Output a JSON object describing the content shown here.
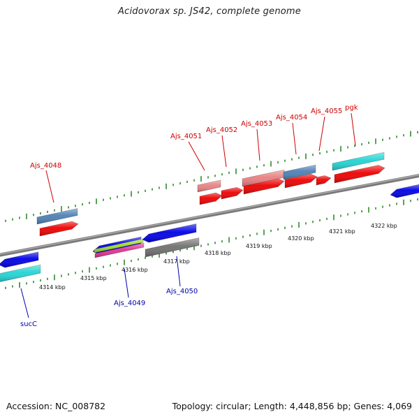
{
  "title": "Acidovorax sp. JS42, complete genome",
  "footer": {
    "accession": "Accession: NC_008782",
    "summary": "Topology: circular; Length: 4,448,856 bp; Genes: 4,069"
  },
  "colors": {
    "backbone": "#7a7a7a",
    "tick": "#2e8b2e",
    "forward_label": "#cc0000",
    "reverse_label": "#0000aa",
    "red": "#ee0000",
    "pink": "#e98080",
    "steelblue": "#4d81b6",
    "cyan": "#22d4d4",
    "blue": "#0000e6",
    "gray": "#707070",
    "green": "#9bdc2a",
    "magenta": "#e0338f"
  },
  "kbp_labels": [
    "4314 kbp",
    "4315 kbp",
    "4316 kbp",
    "4317 kbp",
    "4318 kbp",
    "4319 kbp",
    "4320 kbp",
    "4321 kbp",
    "4322 kbp"
  ],
  "forward_labels": [
    "Ajs_4048",
    "Ajs_4051",
    "Ajs_4052",
    "Ajs_4053",
    "Ajs_4054",
    "Ajs_4055",
    "pgk"
  ],
  "reverse_labels": [
    "sucC",
    "Ajs_4049",
    "Ajs_4050"
  ]
}
